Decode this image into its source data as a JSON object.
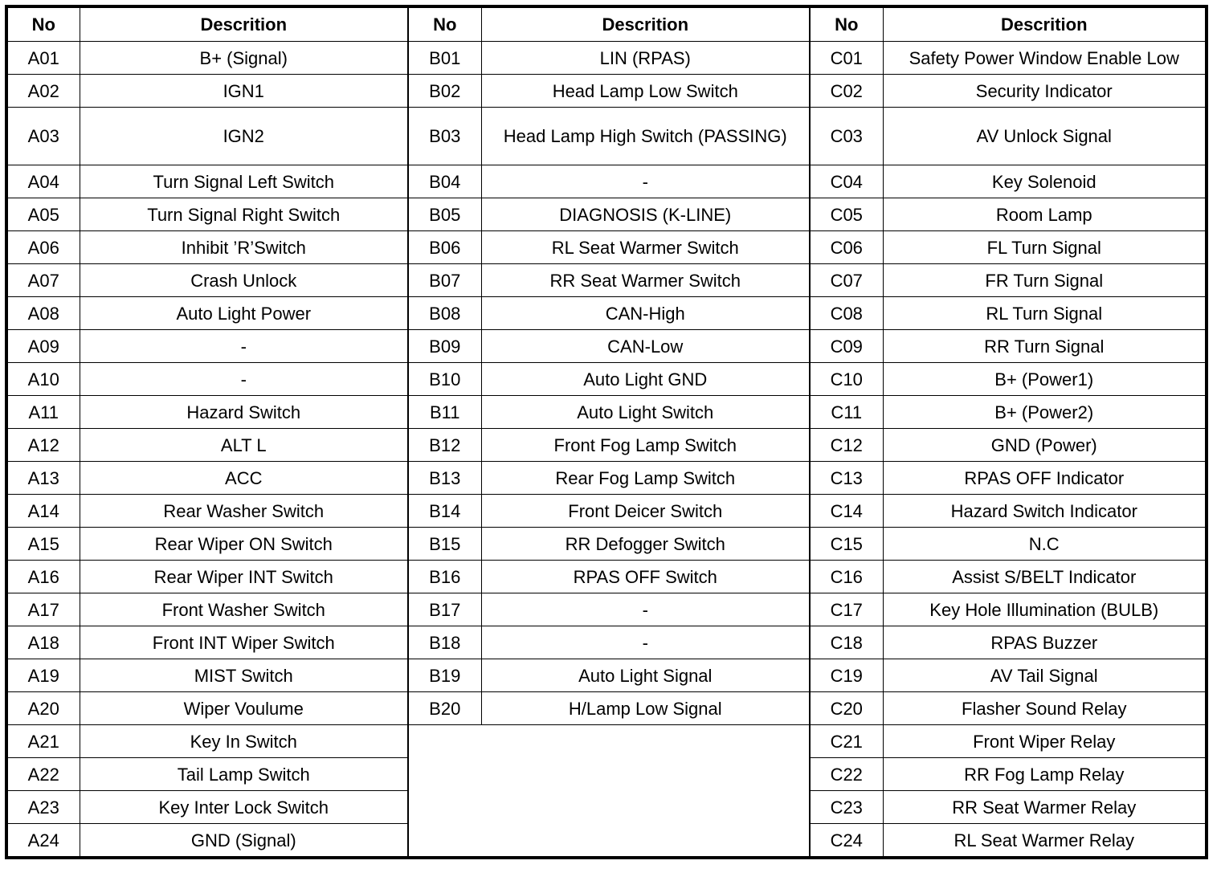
{
  "headers": [
    "No",
    "Descrition",
    "No",
    "Descrition",
    "No",
    "Descrition"
  ],
  "rows": [
    [
      [
        "A01",
        "B+ (Signal)"
      ],
      [
        "B01",
        "LIN (RPAS)"
      ],
      [
        "C01",
        "Safety Power Window Enable Low"
      ]
    ],
    [
      [
        "A02",
        "IGN1"
      ],
      [
        "B02",
        "Head Lamp Low Switch"
      ],
      [
        "C02",
        "Security Indicator"
      ]
    ],
    [
      [
        "A03",
        "IGN2"
      ],
      [
        "B03",
        "Head Lamp High Switch (PASSING)"
      ],
      [
        "C03",
        "AV Unlock Signal"
      ]
    ],
    [
      [
        "A04",
        "Turn Signal Left Switch"
      ],
      [
        "B04",
        "-"
      ],
      [
        "C04",
        "Key Solenoid"
      ]
    ],
    [
      [
        "A05",
        "Turn Signal Right Switch"
      ],
      [
        "B05",
        "DIAGNOSIS (K-LINE)"
      ],
      [
        "C05",
        "Room Lamp"
      ]
    ],
    [
      [
        "A06",
        "Inhibit ’R’Switch"
      ],
      [
        "B06",
        "RL Seat Warmer Switch"
      ],
      [
        "C06",
        "FL Turn Signal"
      ]
    ],
    [
      [
        "A07",
        "Crash Unlock"
      ],
      [
        "B07",
        "RR Seat Warmer Switch"
      ],
      [
        "C07",
        "FR Turn Signal"
      ]
    ],
    [
      [
        "A08",
        "Auto Light Power"
      ],
      [
        "B08",
        "CAN-High"
      ],
      [
        "C08",
        "RL Turn Signal"
      ]
    ],
    [
      [
        "A09",
        "-"
      ],
      [
        "B09",
        "CAN-Low"
      ],
      [
        "C09",
        "RR Turn Signal"
      ]
    ],
    [
      [
        "A10",
        "-"
      ],
      [
        "B10",
        "Auto Light GND"
      ],
      [
        "C10",
        "B+ (Power1)"
      ]
    ],
    [
      [
        "A11",
        "Hazard Switch"
      ],
      [
        "B11",
        "Auto Light Switch"
      ],
      [
        "C11",
        "B+ (Power2)"
      ]
    ],
    [
      [
        "A12",
        "ALT L"
      ],
      [
        "B12",
        "Front Fog Lamp Switch"
      ],
      [
        "C12",
        "GND (Power)"
      ]
    ],
    [
      [
        "A13",
        "ACC"
      ],
      [
        "B13",
        "Rear Fog Lamp Switch"
      ],
      [
        "C13",
        "RPAS OFF Indicator"
      ]
    ],
    [
      [
        "A14",
        "Rear Washer Switch"
      ],
      [
        "B14",
        "Front Deicer Switch"
      ],
      [
        "C14",
        "Hazard Switch Indicator"
      ]
    ],
    [
      [
        "A15",
        "Rear Wiper ON Switch"
      ],
      [
        "B15",
        "RR Defogger Switch"
      ],
      [
        "C15",
        "N.C"
      ]
    ],
    [
      [
        "A16",
        "Rear Wiper INT Switch"
      ],
      [
        "B16",
        "RPAS OFF Switch"
      ],
      [
        "C16",
        "Assist S/BELT Indicator"
      ]
    ],
    [
      [
        "A17",
        "Front Washer Switch"
      ],
      [
        "B17",
        "-"
      ],
      [
        "C17",
        "Key Hole Illumination (BULB)"
      ]
    ],
    [
      [
        "A18",
        "Front INT Wiper Switch"
      ],
      [
        "B18",
        "-"
      ],
      [
        "C18",
        "RPAS Buzzer"
      ]
    ],
    [
      [
        "A19",
        "MIST Switch"
      ],
      [
        "B19",
        "Auto Light Signal"
      ],
      [
        "C19",
        "AV Tail Signal"
      ]
    ],
    [
      [
        "A20",
        "Wiper Voulume"
      ],
      [
        "B20",
        "H/Lamp Low Signal"
      ],
      [
        "C20",
        "Flasher Sound Relay"
      ]
    ],
    [
      [
        "A21",
        "Key In Switch"
      ],
      null,
      [
        "C21",
        "Front Wiper Relay"
      ]
    ],
    [
      [
        "A22",
        "Tail Lamp Switch"
      ],
      null,
      [
        "C22",
        "RR Fog Lamp Relay"
      ]
    ],
    [
      [
        "A23",
        "Key Inter Lock Switch"
      ],
      null,
      [
        "C23",
        "RR Seat Warmer Relay"
      ]
    ],
    [
      [
        "A24",
        "GND (Signal)"
      ],
      null,
      [
        "C24",
        "RL Seat Warmer Relay"
      ]
    ]
  ]
}
